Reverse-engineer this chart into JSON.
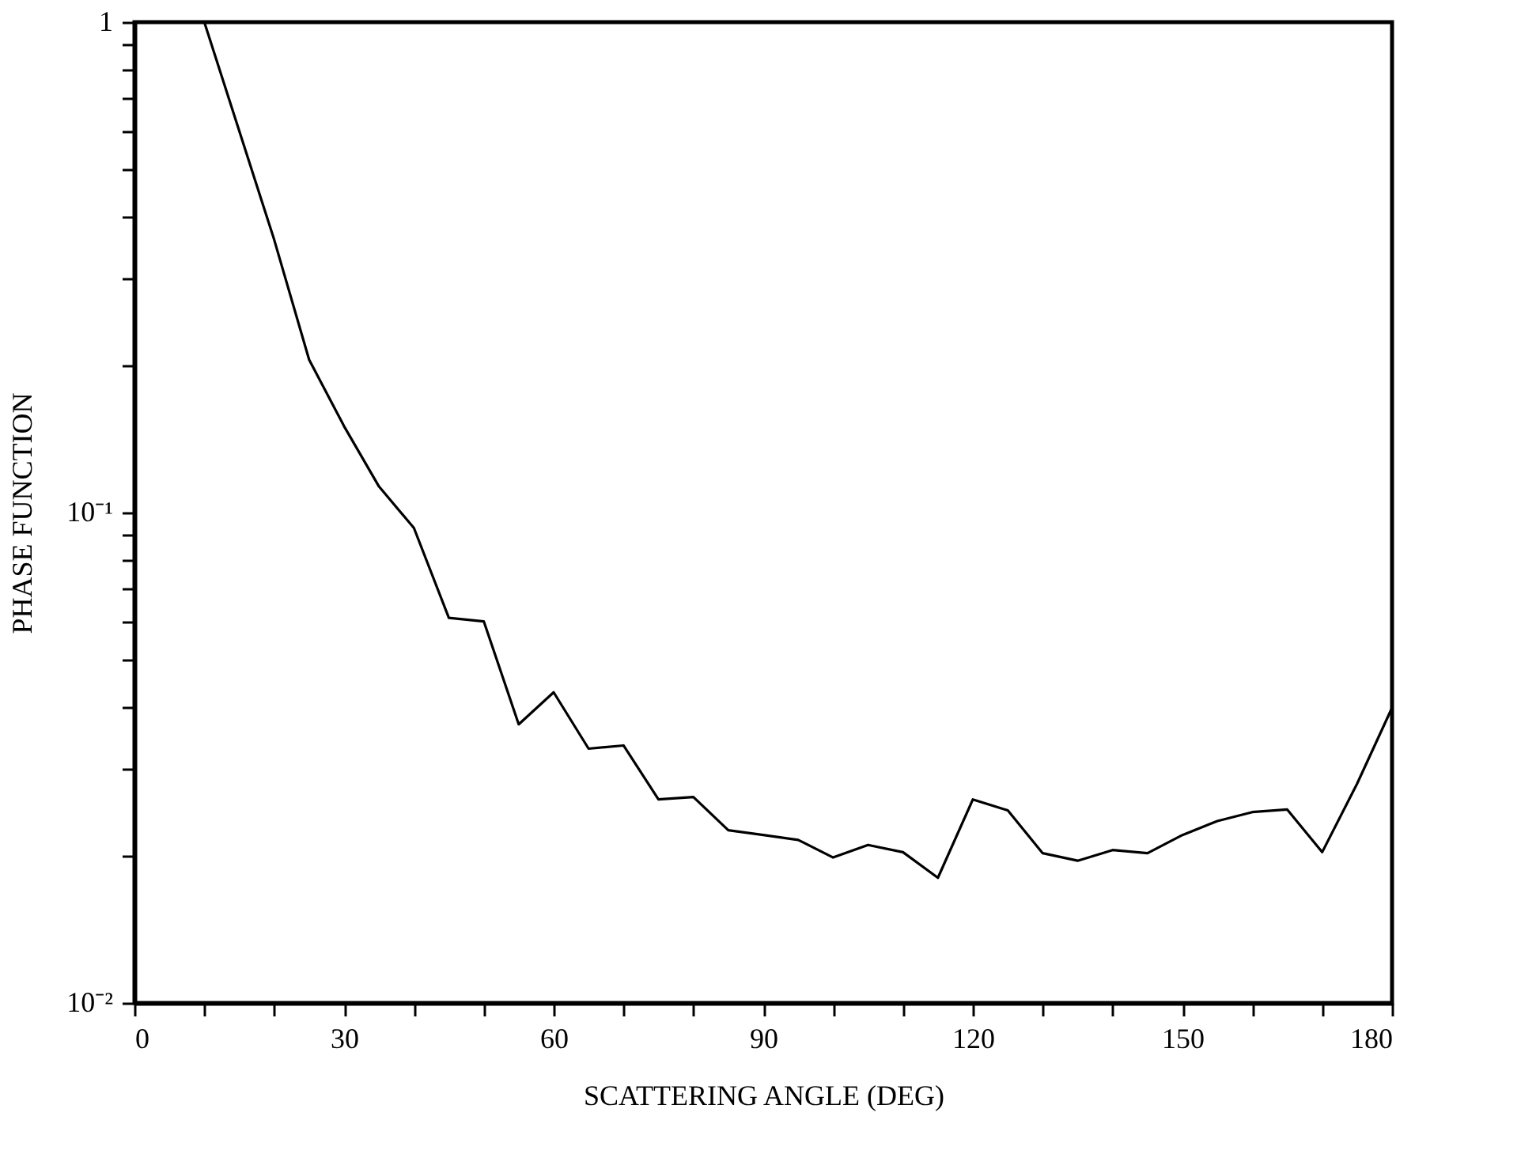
{
  "chart_data": {
    "type": "line",
    "xlabel": "SCATTERING ANGLE (DEG)",
    "ylabel": "PHASE FUNCTION",
    "x": [
      10,
      15,
      20,
      25,
      30,
      35,
      40,
      45,
      50,
      55,
      60,
      65,
      70,
      75,
      80,
      85,
      90,
      95,
      100,
      105,
      110,
      115,
      120,
      125,
      130,
      135,
      140,
      145,
      150,
      155,
      160,
      165,
      170,
      175,
      180
    ],
    "series": [
      {
        "color": "#000000",
        "values": [
          1.0,
          0.6,
          0.36,
          0.205,
          0.15,
          0.113,
          0.093,
          0.061,
          0.06,
          0.037,
          0.043,
          0.033,
          0.0335,
          0.026,
          0.0263,
          0.0225,
          0.022,
          0.0215,
          0.0198,
          0.021,
          0.0203,
          0.018,
          0.026,
          0.0247,
          0.0202,
          0.0195,
          0.0205,
          0.0202,
          0.022,
          0.0235,
          0.0245,
          0.0248,
          0.0203,
          0.028,
          0.04
        ]
      }
    ],
    "xlim": [
      0,
      180
    ],
    "ylim": [
      0.01,
      1
    ],
    "log": true,
    "grid": false,
    "marker": "none",
    "line_style": "solid",
    "xticks": [
      0,
      {
        "value": 10,
        "label": null
      },
      {
        "value": 20,
        "label": null
      },
      30,
      {
        "value": 40,
        "label": null
      },
      {
        "value": 50,
        "label": null
      },
      60,
      {
        "value": 70,
        "label": null
      },
      {
        "value": 80,
        "label": null
      },
      90,
      {
        "value": 100,
        "label": null
      },
      {
        "value": 110,
        "label": null
      },
      120,
      {
        "value": 130,
        "label": null
      },
      {
        "value": 140,
        "label": null
      },
      150,
      {
        "value": 160,
        "label": null
      },
      {
        "value": 170,
        "label": null
      },
      180
    ],
    "yticks": [
      {
        "value": 0.01,
        "label": "10⁻²"
      },
      {
        "value": 0.02,
        "label": null
      },
      {
        "value": 0.03,
        "label": null
      },
      {
        "value": 0.04,
        "label": null
      },
      {
        "value": 0.05,
        "label": null
      },
      {
        "value": 0.06,
        "label": null
      },
      {
        "value": 0.07,
        "label": null
      },
      {
        "value": 0.08,
        "label": null
      },
      {
        "value": 0.09,
        "label": null
      },
      {
        "value": 0.1,
        "label": "10⁻¹"
      },
      {
        "value": 0.2,
        "label": null
      },
      {
        "value": 0.3,
        "label": null
      },
      {
        "value": 0.4,
        "label": null
      },
      {
        "value": 0.5,
        "label": null
      },
      {
        "value": 0.6,
        "label": null
      },
      {
        "value": 0.7,
        "label": null
      },
      {
        "value": 0.8,
        "label": null
      },
      {
        "value": 0.9,
        "label": null
      },
      1
    ]
  }
}
